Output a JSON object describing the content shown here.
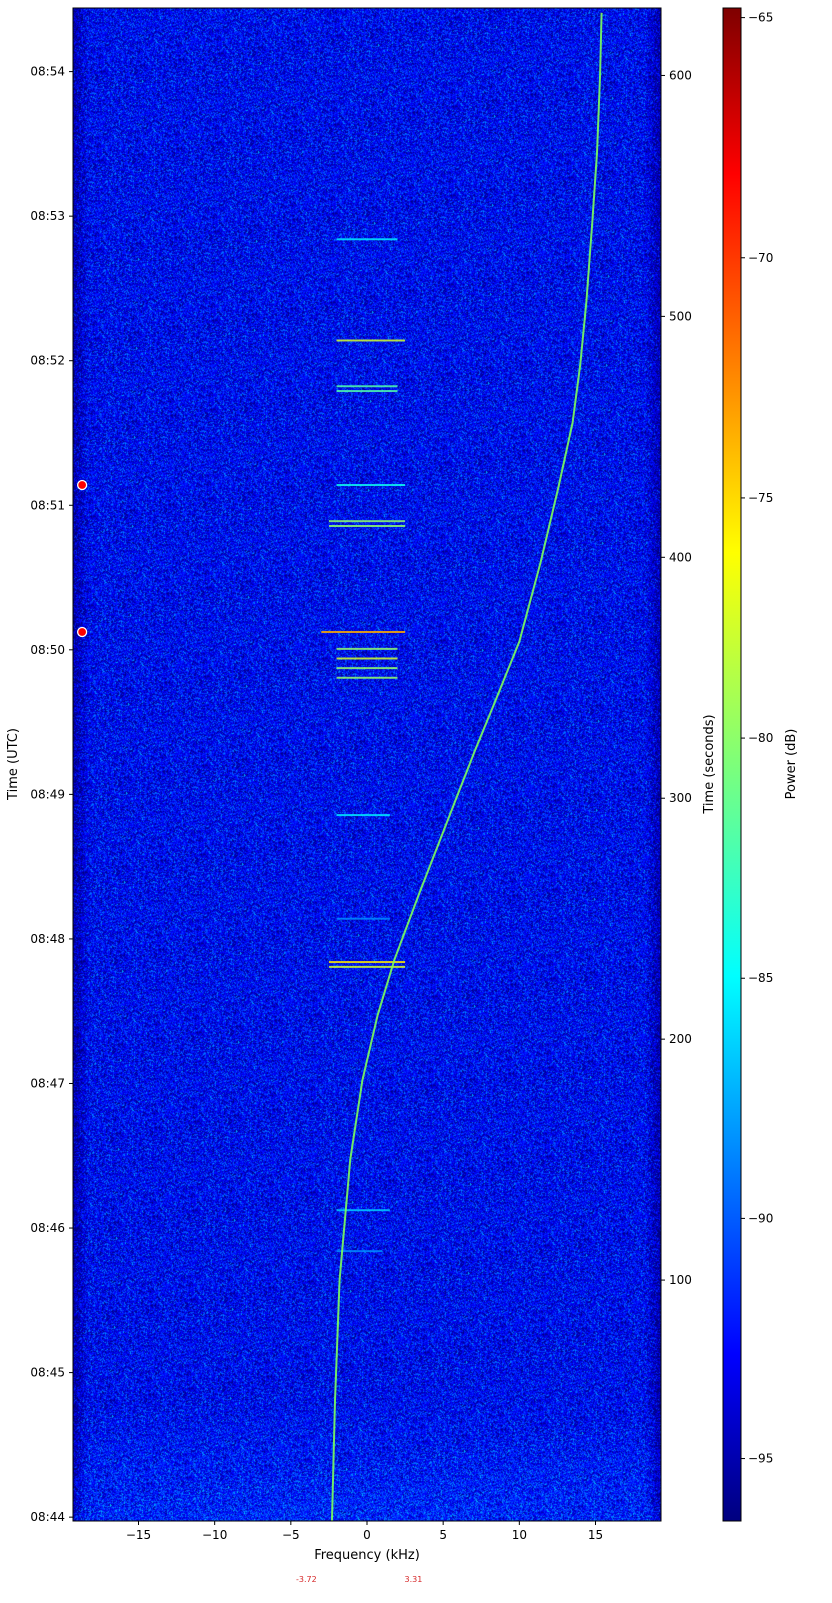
{
  "chart_data": {
    "type": "heatmap",
    "subtype": "spectrogram",
    "xlabel": "Frequency (kHz)",
    "ylabel_left": "Time (UTC)",
    "ylabel_right": "Time (seconds)",
    "colorbar_label": "Power (dB)",
    "colormap": "jet",
    "xlim": [
      -19.3,
      19.3
    ],
    "ylim_seconds": [
      0,
      628
    ],
    "colorbar_range": [
      -96.3,
      -64.8
    ],
    "x_ticks": [
      -15,
      -10,
      -5,
      0,
      5,
      10,
      15
    ],
    "x_tick_labels": [
      "−15",
      "−10",
      "−5",
      "0",
      "5",
      "10",
      "15"
    ],
    "right_ticks": [
      100,
      200,
      300,
      400,
      500,
      600
    ],
    "left_ticks_seconds": [
      1.6,
      61.6,
      121.6,
      181.6,
      241.6,
      301.6,
      361.6,
      421.6,
      481.6,
      541.6,
      601.6
    ],
    "left_tick_labels": [
      "08:44",
      "08:45",
      "08:46",
      "08:47",
      "08:48",
      "08:49",
      "08:50",
      "08:51",
      "08:52",
      "08:53",
      "08:54"
    ],
    "colorbar_ticks": [
      -95,
      -90,
      -85,
      -80,
      -75,
      -70,
      -65
    ],
    "colorbar_tick_labels": [
      "−95",
      "−90",
      "−85",
      "−80",
      "−75",
      "−70",
      "−65"
    ],
    "noise_floor_db": -92.5,
    "doppler_trace": {
      "t": [
        0,
        50,
        100,
        150,
        183,
        210,
        233,
        260,
        299,
        320,
        340,
        365,
        398,
        430,
        456,
        480,
        506,
        540,
        568,
        600,
        626
      ],
      "f": [
        -2.3,
        -2.1,
        -1.8,
        -1.1,
        -0.3,
        0.7,
        1.8,
        3.4,
        5.8,
        7.1,
        8.4,
        10.0,
        11.4,
        12.6,
        13.5,
        14.0,
        14.4,
        14.8,
        15.1,
        15.3,
        15.4
      ]
    },
    "bursts": [
      {
        "t": 532,
        "f": [
          -2,
          2
        ],
        "db": -85
      },
      {
        "t": 490,
        "f": [
          -2,
          2.5
        ],
        "db": -78
      },
      {
        "t": 471,
        "f": [
          -2,
          2
        ],
        "db": -82
      },
      {
        "t": 469,
        "f": [
          -2,
          2
        ],
        "db": -82
      },
      {
        "t": 430,
        "f": [
          -2,
          2.5
        ],
        "db": -84
      },
      {
        "t": 415,
        "f": [
          -2.5,
          2.5
        ],
        "db": -80
      },
      {
        "t": 413,
        "f": [
          -2.5,
          2.5
        ],
        "db": -80
      },
      {
        "t": 369,
        "f": [
          -3,
          2.5
        ],
        "db": -74
      },
      {
        "t": 362,
        "f": [
          -2,
          2
        ],
        "db": -80
      },
      {
        "t": 358,
        "f": [
          -2,
          2
        ],
        "db": -78
      },
      {
        "t": 354,
        "f": [
          -2,
          2
        ],
        "db": -80
      },
      {
        "t": 350,
        "f": [
          -2,
          2
        ],
        "db": -80
      },
      {
        "t": 293,
        "f": [
          -2,
          1.5
        ],
        "db": -85
      },
      {
        "t": 250,
        "f": [
          -2,
          1.5
        ],
        "db": -88
      },
      {
        "t": 232,
        "f": [
          -2.5,
          2.5
        ],
        "db": -76
      },
      {
        "t": 230,
        "f": [
          -2.5,
          2.5
        ],
        "db": -78
      },
      {
        "t": 129,
        "f": [
          -2,
          1.5
        ],
        "db": -86
      },
      {
        "t": 112,
        "f": [
          -2,
          1
        ],
        "db": -88
      }
    ],
    "markers": [
      {
        "t": 430,
        "f": -18.7,
        "color": "#ff0000"
      },
      {
        "t": 369,
        "f": -18.7,
        "color": "#ff0000"
      }
    ],
    "annotations": [
      {
        "text": "-3.72",
        "f": -3.72,
        "color": "#d62728"
      },
      {
        "text": "3.31",
        "f": 3.31,
        "color": "#d62728"
      }
    ]
  }
}
